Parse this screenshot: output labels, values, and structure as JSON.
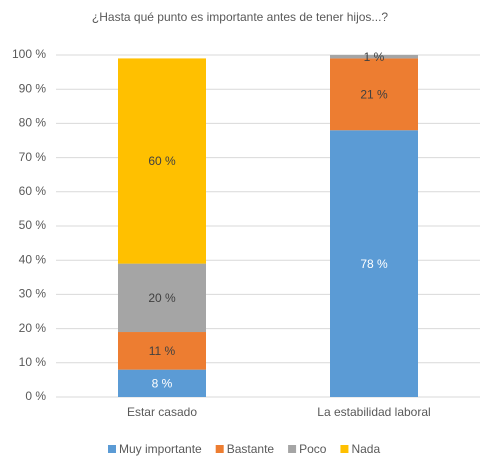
{
  "chart_data": {
    "type": "stacked_bar",
    "title": "¿Hasta qué punto es importante antes de tener hijos...?",
    "categories": [
      "Estar casado",
      "La estabilidad laboral"
    ],
    "series": [
      {
        "name": "Muy importante",
        "color": "#5b9bd5",
        "values": [
          8,
          78
        ],
        "value_labels": [
          "8 %",
          "78 %"
        ]
      },
      {
        "name": "Bastante",
        "color": "#ed7d31",
        "values": [
          11,
          21
        ],
        "value_labels": [
          "11 %",
          "21 %"
        ]
      },
      {
        "name": "Poco",
        "color": "#a5a5a5",
        "values": [
          20,
          1
        ],
        "value_labels": [
          "20 %",
          "1 %"
        ]
      },
      {
        "name": "Nada",
        "color": "#ffc000",
        "values": [
          60,
          null
        ],
        "value_labels": [
          "60 %",
          null
        ]
      }
    ],
    "ylim": [
      0,
      100
    ],
    "yticks": [
      {
        "value": 0,
        "label": "0 %"
      },
      {
        "value": 10,
        "label": "10 %"
      },
      {
        "value": 20,
        "label": "20 %"
      },
      {
        "value": 30,
        "label": "30 %"
      },
      {
        "value": 40,
        "label": "40 %"
      },
      {
        "value": 50,
        "label": "50 %"
      },
      {
        "value": 60,
        "label": "60 %"
      },
      {
        "value": 70,
        "label": "70 %"
      },
      {
        "value": 80,
        "label": "80 %"
      },
      {
        "value": 90,
        "label": "90 %"
      },
      {
        "value": 100,
        "label": "100 %"
      }
    ],
    "grid": true,
    "legend": "bottom"
  }
}
